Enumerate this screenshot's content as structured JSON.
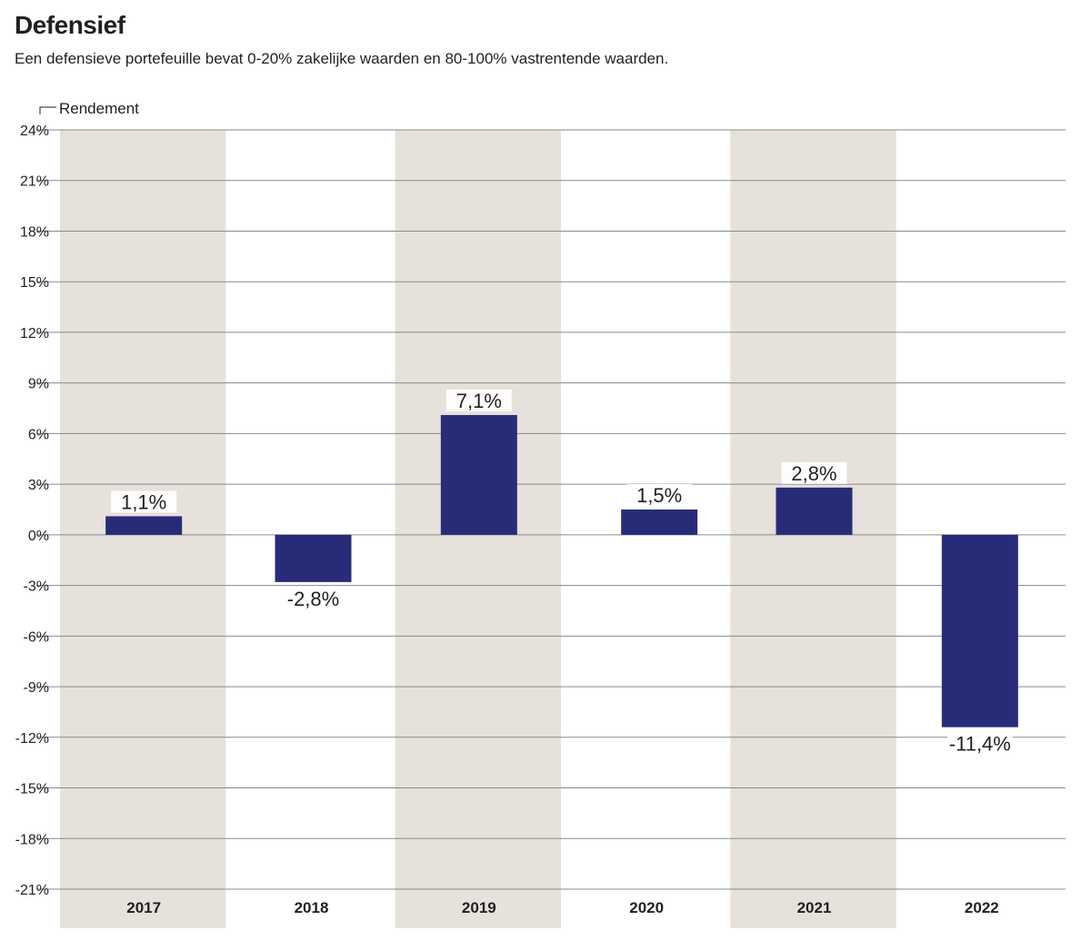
{
  "colors": {
    "bar": "#282c78",
    "band": "#e6e1db",
    "grid": "#8a8a8a",
    "text": "#231f20",
    "background": "#ffffff"
  },
  "chart_data": {
    "type": "bar",
    "title": "Defensief",
    "subtitle": "Een defensieve portefeuille bevat 0-20% zakelijke waarden en 80-100% vastrentende waarden.",
    "ylabel": "Rendement",
    "xlabel": "",
    "categories": [
      "2017",
      "2018",
      "2019",
      "2020",
      "2021",
      "2022"
    ],
    "values": [
      1.1,
      -2.8,
      7.1,
      1.5,
      2.8,
      -11.4
    ],
    "value_labels": [
      "1,1%",
      "-2,8%",
      "7,1%",
      "1,5%",
      "2,8%",
      "-11,4%"
    ],
    "ylim": [
      -21,
      24
    ],
    "yticks": [
      24,
      21,
      18,
      15,
      12,
      9,
      6,
      3,
      0,
      -3,
      -6,
      -9,
      -12,
      -15,
      -18,
      -21
    ],
    "ytick_labels": [
      "24%",
      "21%",
      "18%",
      "15%",
      "12%",
      "9%",
      "6%",
      "3%",
      "0%",
      "-3%",
      "-6%",
      "-9%",
      "-12%",
      "-15%",
      "-18%",
      "-21%"
    ],
    "shaded_categories": [
      "2017",
      "2019",
      "2021"
    ],
    "grid": true
  }
}
